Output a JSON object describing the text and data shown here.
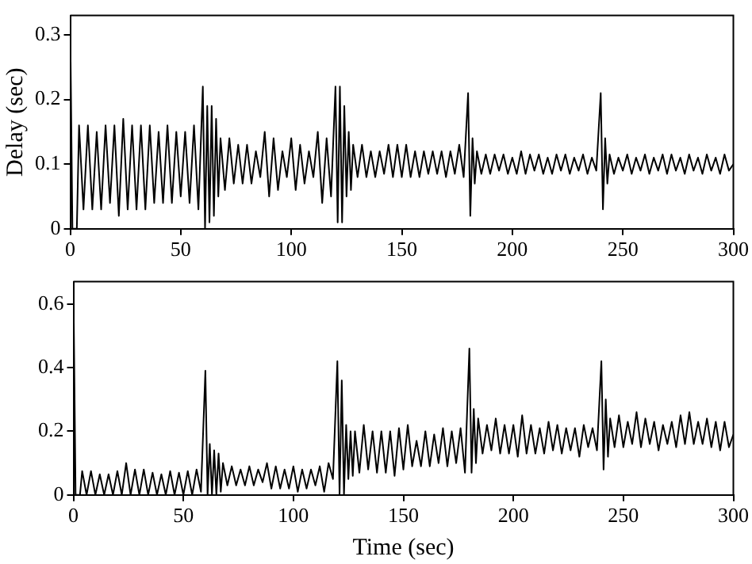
{
  "chart_data": [
    {
      "type": "line",
      "ylabel": "Delay (sec)",
      "xlim": [
        0,
        300
      ],
      "xticks": [
        0,
        50,
        100,
        150,
        200,
        250,
        300
      ],
      "ylim": [
        0,
        0.33
      ],
      "yticks": [
        0,
        0.1,
        0.2,
        0.3
      ],
      "grid": false,
      "legend": false,
      "x": [
        0,
        1,
        3,
        4,
        6,
        8,
        10,
        12,
        14,
        16,
        18,
        20,
        22,
        24,
        26,
        28,
        30,
        32,
        34,
        36,
        38,
        40,
        42,
        44,
        46,
        48,
        50,
        52,
        54,
        56,
        58,
        60,
        61,
        62,
        63,
        64,
        65,
        66,
        67,
        68,
        70,
        72,
        74,
        76,
        78,
        80,
        82,
        84,
        86,
        88,
        90,
        92,
        94,
        96,
        98,
        100,
        102,
        104,
        106,
        108,
        110,
        112,
        114,
        116,
        118,
        120,
        121,
        122,
        123,
        124,
        125,
        126,
        127,
        128,
        130,
        132,
        134,
        136,
        138,
        140,
        142,
        144,
        146,
        148,
        150,
        152,
        154,
        156,
        158,
        160,
        162,
        164,
        166,
        168,
        170,
        172,
        174,
        176,
        178,
        180,
        181,
        182,
        183,
        184,
        186,
        188,
        190,
        192,
        194,
        196,
        198,
        200,
        202,
        204,
        206,
        208,
        210,
        212,
        214,
        216,
        218,
        220,
        222,
        224,
        226,
        228,
        230,
        232,
        234,
        236,
        238,
        240,
        241,
        242,
        243,
        244,
        246,
        248,
        250,
        252,
        254,
        256,
        258,
        260,
        262,
        264,
        266,
        268,
        270,
        272,
        274,
        276,
        278,
        280,
        282,
        284,
        286,
        288,
        290,
        292,
        294,
        296,
        298,
        300
      ],
      "series": [
        {
          "color": "#000000",
          "values": [
            0.32,
            0,
            0,
            0.16,
            0.03,
            0.16,
            0.03,
            0.15,
            0.03,
            0.16,
            0.04,
            0.16,
            0.02,
            0.17,
            0.03,
            0.16,
            0.03,
            0.16,
            0.03,
            0.16,
            0.04,
            0.15,
            0.04,
            0.16,
            0.04,
            0.15,
            0.05,
            0.15,
            0.04,
            0.16,
            0.03,
            0.22,
            0,
            0.19,
            0.01,
            0.19,
            0.02,
            0.17,
            0.05,
            0.14,
            0.06,
            0.14,
            0.07,
            0.13,
            0.07,
            0.13,
            0.07,
            0.12,
            0.08,
            0.15,
            0.05,
            0.14,
            0.06,
            0.12,
            0.08,
            0.14,
            0.06,
            0.13,
            0.07,
            0.12,
            0.08,
            0.15,
            0.04,
            0.14,
            0.05,
            0.22,
            0.01,
            0.22,
            0.01,
            0.19,
            0.05,
            0.15,
            0.06,
            0.13,
            0.08,
            0.13,
            0.08,
            0.12,
            0.08,
            0.12,
            0.085,
            0.13,
            0.08,
            0.13,
            0.08,
            0.13,
            0.08,
            0.12,
            0.08,
            0.12,
            0.085,
            0.12,
            0.085,
            0.12,
            0.08,
            0.12,
            0.085,
            0.13,
            0.08,
            0.21,
            0.02,
            0.14,
            0.07,
            0.12,
            0.085,
            0.115,
            0.085,
            0.115,
            0.09,
            0.115,
            0.085,
            0.11,
            0.085,
            0.12,
            0.085,
            0.115,
            0.09,
            0.115,
            0.085,
            0.11,
            0.085,
            0.115,
            0.09,
            0.115,
            0.085,
            0.11,
            0.09,
            0.115,
            0.085,
            0.11,
            0.09,
            0.21,
            0.03,
            0.14,
            0.07,
            0.115,
            0.085,
            0.11,
            0.09,
            0.115,
            0.085,
            0.11,
            0.09,
            0.115,
            0.085,
            0.11,
            0.09,
            0.115,
            0.085,
            0.115,
            0.09,
            0.11,
            0.085,
            0.115,
            0.09,
            0.11,
            0.085,
            0.115,
            0.09,
            0.11,
            0.085,
            0.115,
            0.09,
            0.1
          ]
        }
      ]
    },
    {
      "type": "line",
      "xlabel": "Time (sec)",
      "xlim": [
        0,
        300
      ],
      "xticks": [
        0,
        50,
        100,
        150,
        200,
        250,
        300
      ],
      "ylim": [
        0,
        0.67
      ],
      "yticks": [
        0,
        0.2,
        0.4,
        0.6
      ],
      "grid": false,
      "legend": false,
      "x": [
        0,
        1,
        3,
        4,
        6,
        8,
        10,
        12,
        14,
        16,
        18,
        20,
        22,
        24,
        26,
        28,
        30,
        32,
        34,
        36,
        38,
        40,
        42,
        44,
        46,
        48,
        50,
        52,
        54,
        56,
        58,
        60,
        61,
        62,
        63,
        64,
        65,
        66,
        67,
        68,
        70,
        72,
        74,
        76,
        78,
        80,
        82,
        84,
        86,
        88,
        90,
        92,
        94,
        96,
        98,
        100,
        102,
        104,
        106,
        108,
        110,
        112,
        114,
        116,
        118,
        120,
        121,
        122,
        123,
        124,
        125,
        126,
        127,
        128,
        130,
        132,
        134,
        136,
        138,
        140,
        142,
        144,
        146,
        148,
        150,
        152,
        154,
        156,
        158,
        160,
        162,
        164,
        166,
        168,
        170,
        172,
        174,
        176,
        178,
        180,
        181,
        182,
        183,
        184,
        186,
        188,
        190,
        192,
        194,
        196,
        198,
        200,
        202,
        204,
        206,
        208,
        210,
        212,
        214,
        216,
        218,
        220,
        222,
        224,
        226,
        228,
        230,
        232,
        234,
        236,
        238,
        240,
        241,
        242,
        243,
        244,
        246,
        248,
        250,
        252,
        254,
        256,
        258,
        260,
        262,
        264,
        266,
        268,
        270,
        272,
        274,
        276,
        278,
        280,
        282,
        284,
        286,
        288,
        290,
        292,
        294,
        296,
        298,
        300
      ],
      "series": [
        {
          "color": "#000000",
          "values": [
            0.67,
            0,
            0,
            0.075,
            0,
            0.075,
            0,
            0.065,
            0,
            0.065,
            0,
            0.075,
            0,
            0.1,
            0,
            0.08,
            0,
            0.08,
            0,
            0.07,
            0,
            0.065,
            0,
            0.075,
            0,
            0.07,
            0,
            0.075,
            0,
            0.08,
            0.01,
            0.39,
            0,
            0.16,
            0,
            0.14,
            0,
            0.13,
            0.01,
            0.1,
            0.03,
            0.09,
            0.03,
            0.08,
            0.03,
            0.09,
            0.03,
            0.08,
            0.04,
            0.1,
            0.02,
            0.09,
            0.02,
            0.08,
            0.02,
            0.09,
            0.01,
            0.08,
            0.02,
            0.08,
            0.03,
            0.09,
            0.01,
            0.1,
            0.05,
            0.42,
            0,
            0.36,
            0,
            0.22,
            0.05,
            0.2,
            0.06,
            0.2,
            0.07,
            0.22,
            0.08,
            0.2,
            0.07,
            0.2,
            0.07,
            0.2,
            0.06,
            0.21,
            0.08,
            0.22,
            0.09,
            0.17,
            0.09,
            0.2,
            0.09,
            0.19,
            0.1,
            0.21,
            0.09,
            0.2,
            0.1,
            0.21,
            0.07,
            0.46,
            0.07,
            0.27,
            0.1,
            0.24,
            0.13,
            0.22,
            0.14,
            0.24,
            0.13,
            0.22,
            0.13,
            0.22,
            0.12,
            0.25,
            0.13,
            0.22,
            0.13,
            0.21,
            0.13,
            0.23,
            0.14,
            0.22,
            0.13,
            0.21,
            0.14,
            0.21,
            0.12,
            0.22,
            0.15,
            0.21,
            0.14,
            0.42,
            0.08,
            0.3,
            0.12,
            0.24,
            0.15,
            0.25,
            0.15,
            0.23,
            0.16,
            0.26,
            0.15,
            0.24,
            0.16,
            0.23,
            0.14,
            0.22,
            0.16,
            0.23,
            0.15,
            0.25,
            0.16,
            0.26,
            0.16,
            0.23,
            0.16,
            0.24,
            0.15,
            0.23,
            0.14,
            0.23,
            0.15,
            0.19
          ]
        }
      ]
    }
  ]
}
